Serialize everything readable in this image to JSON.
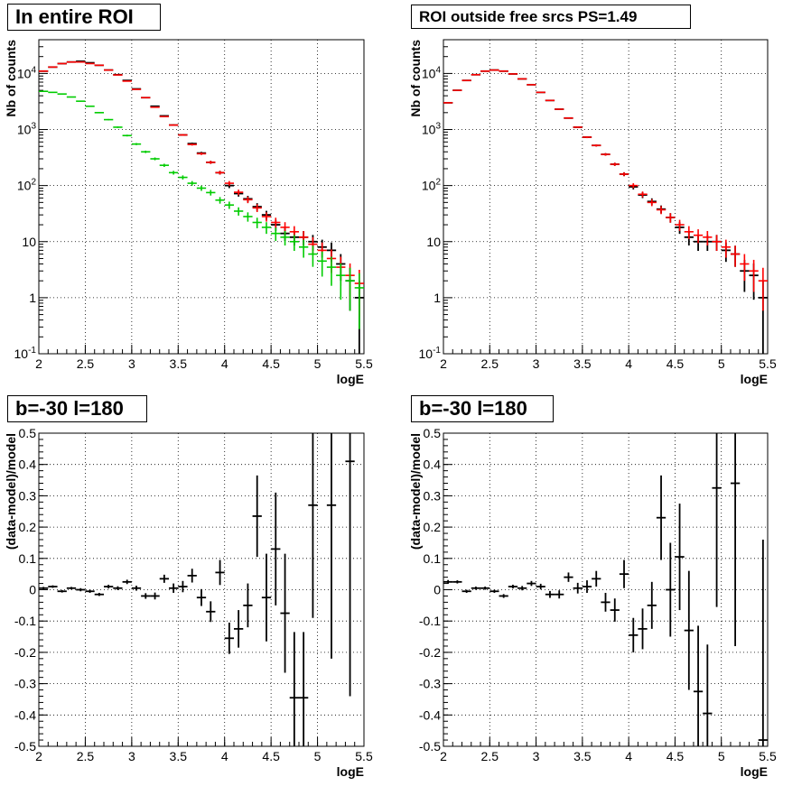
{
  "colors": {
    "data": "#000000",
    "model_total": "#ff0000",
    "model_blue": "#0000ff",
    "component": "#00cc00",
    "grid": "#000000"
  },
  "chart_data": [
    {
      "panel": "top-left",
      "type": "scatter",
      "title": "In entire ROI",
      "xlabel": "logE",
      "ylabel": "Nb of counts",
      "xlim": [
        2,
        5.5
      ],
      "ylim": [
        0.1,
        40000
      ],
      "yscale": "log",
      "xticks": [
        "2",
        "2.5",
        "3",
        "3.5",
        "4",
        "4.5",
        "5",
        "5.5"
      ],
      "yticks": [
        "10^-1",
        "1",
        "10",
        "10^2",
        "10^3",
        "10^4"
      ],
      "grid": true,
      "x": [
        2.05,
        2.15,
        2.25,
        2.35,
        2.45,
        2.55,
        2.65,
        2.75,
        2.85,
        2.95,
        3.05,
        3.15,
        3.25,
        3.35,
        3.45,
        3.55,
        3.65,
        3.75,
        3.85,
        3.95,
        4.05,
        4.15,
        4.25,
        4.35,
        4.45,
        4.55,
        4.65,
        4.75,
        4.85,
        4.95,
        5.05,
        5.15,
        5.25,
        5.35,
        5.45
      ],
      "series": [
        {
          "role": "data",
          "values": [
            11000,
            13000,
            15000,
            16000,
            16500,
            15500,
            14000,
            11500,
            9500,
            7500,
            5300,
            3700,
            2600,
            1750,
            1200,
            800,
            560,
            380,
            260,
            170,
            100,
            72,
            58,
            42,
            30,
            20,
            14,
            12,
            12,
            10,
            8,
            7,
            4,
            2,
            1
          ]
        },
        {
          "role": "model_total",
          "values": [
            11000,
            13000,
            15000,
            16000,
            16000,
            15000,
            14000,
            11500,
            9400,
            7300,
            5200,
            3700,
            2500,
            1700,
            1200,
            800,
            540,
            370,
            260,
            170,
            110,
            76,
            56,
            40,
            28,
            22,
            18,
            15,
            12,
            9,
            7,
            5,
            3.5,
            2.5,
            1.8
          ]
        },
        {
          "role": "component",
          "values": [
            4800,
            4600,
            4300,
            3800,
            3200,
            2600,
            2000,
            1500,
            1100,
            780,
            550,
            400,
            300,
            230,
            170,
            140,
            110,
            90,
            75,
            55,
            45,
            35,
            28,
            22,
            18,
            14,
            12,
            10,
            8,
            6,
            4.5,
            3.5,
            2.5,
            2,
            1.5
          ]
        }
      ]
    },
    {
      "panel": "top-right",
      "type": "scatter",
      "title": "ROI outside free srcs PS=1.49",
      "xlabel": "logE",
      "ylabel": "Nb of counts",
      "xlim": [
        2,
        5.5
      ],
      "ylim": [
        0.1,
        40000
      ],
      "yscale": "log",
      "xticks": [
        "2",
        "2.5",
        "3",
        "3.5",
        "4",
        "4.5",
        "5",
        "5.5"
      ],
      "yticks": [
        "10^-1",
        "1",
        "10",
        "10^2",
        "10^3",
        "10^4"
      ],
      "grid": true,
      "x": [
        2.05,
        2.15,
        2.25,
        2.35,
        2.45,
        2.55,
        2.65,
        2.75,
        2.85,
        2.95,
        3.05,
        3.15,
        3.25,
        3.35,
        3.45,
        3.55,
        3.65,
        3.75,
        3.85,
        3.95,
        4.05,
        4.15,
        4.25,
        4.35,
        4.45,
        4.55,
        4.65,
        4.75,
        4.85,
        4.95,
        5.05,
        5.15,
        5.25,
        5.35,
        5.45
      ],
      "series": [
        {
          "role": "data",
          "values": [
            3000,
            5000,
            7500,
            9500,
            11000,
            11500,
            11000,
            9800,
            8000,
            6300,
            4600,
            3300,
            2300,
            1600,
            1100,
            730,
            520,
            360,
            240,
            160,
            95,
            68,
            52,
            38,
            27,
            18,
            12,
            10,
            10,
            10,
            7,
            6,
            3,
            2.5,
            1
          ]
        },
        {
          "role": "model_total",
          "values": [
            3000,
            5000,
            7500,
            9500,
            11000,
            11500,
            11000,
            9800,
            8000,
            6300,
            4600,
            3300,
            2300,
            1600,
            1100,
            730,
            520,
            360,
            240,
            160,
            100,
            70,
            50,
            37,
            27,
            20,
            15,
            13,
            12,
            10,
            8,
            6,
            4,
            3,
            2
          ]
        }
      ]
    },
    {
      "panel": "bottom-left",
      "type": "scatter",
      "title": "b=-30 l=180",
      "xlabel": "logE",
      "ylabel": "(data-model)/model",
      "xlim": [
        2,
        5.5
      ],
      "ylim": [
        -0.5,
        0.5
      ],
      "yscale": "linear",
      "xticks": [
        "2",
        "2.5",
        "3",
        "3.5",
        "4",
        "4.5",
        "5",
        "5.5"
      ],
      "yticks": [
        "-0.5",
        "-0.4",
        "-0.3",
        "-0.2",
        "-0.1",
        "0",
        "0.1",
        "0.2",
        "0.3",
        "0.4",
        "0.5"
      ],
      "grid": true,
      "x": [
        2.05,
        2.15,
        2.25,
        2.35,
        2.45,
        2.55,
        2.65,
        2.75,
        2.85,
        2.95,
        3.05,
        3.15,
        3.25,
        3.35,
        3.45,
        3.55,
        3.65,
        3.75,
        3.85,
        3.95,
        4.05,
        4.15,
        4.25,
        4.35,
        4.45,
        4.55,
        4.65,
        4.75,
        4.85,
        4.95,
        5.15,
        5.35
      ],
      "series": [
        {
          "role": "data",
          "values": [
            0.005,
            0.01,
            -0.005,
            0.005,
            0.0,
            -0.005,
            -0.015,
            0.01,
            0.005,
            0.025,
            0.005,
            -0.02,
            -0.02,
            0.035,
            0.005,
            0.01,
            0.045,
            -0.025,
            -0.07,
            0.055,
            -0.155,
            -0.125,
            -0.05,
            0.235,
            -0.025,
            0.13,
            -0.075,
            -0.345,
            -0.345,
            0.27,
            0.27,
            0.41
          ],
          "errors": [
            0.004,
            0.004,
            0.004,
            0.004,
            0.005,
            0.005,
            0.005,
            0.006,
            0.006,
            0.007,
            0.008,
            0.009,
            0.011,
            0.013,
            0.015,
            0.018,
            0.022,
            0.027,
            0.033,
            0.04,
            0.05,
            0.06,
            0.07,
            0.13,
            0.14,
            0.18,
            0.19,
            0.21,
            0.21,
            0.36,
            0.49,
            0.75
          ]
        }
      ]
    },
    {
      "panel": "bottom-right",
      "type": "scatter",
      "title": "b=-30 l=180",
      "xlabel": "logE",
      "ylabel": "(data-model)/model",
      "xlim": [
        2,
        5.5
      ],
      "ylim": [
        -0.5,
        0.5
      ],
      "yscale": "linear",
      "xticks": [
        "2",
        "2.5",
        "3",
        "3.5",
        "4",
        "4.5",
        "5",
        "5.5"
      ],
      "yticks": [
        "-0.5",
        "-0.4",
        "-0.3",
        "-0.2",
        "-0.1",
        "0",
        "0.1",
        "0.2",
        "0.3",
        "0.4",
        "0.5"
      ],
      "grid": true,
      "x": [
        2.05,
        2.15,
        2.25,
        2.35,
        2.45,
        2.55,
        2.65,
        2.75,
        2.85,
        2.95,
        3.05,
        3.15,
        3.25,
        3.35,
        3.45,
        3.55,
        3.65,
        3.75,
        3.85,
        3.95,
        4.05,
        4.15,
        4.25,
        4.35,
        4.45,
        4.55,
        4.65,
        4.75,
        4.85,
        4.95,
        5.15,
        5.45
      ],
      "series": [
        {
          "role": "data",
          "values": [
            0.025,
            0.025,
            -0.005,
            0.005,
            0.005,
            -0.005,
            -0.02,
            0.01,
            0.005,
            0.02,
            0.01,
            -0.015,
            -0.015,
            0.04,
            0.005,
            0.01,
            0.035,
            -0.04,
            -0.065,
            0.05,
            -0.145,
            -0.125,
            -0.05,
            0.23,
            0.0,
            0.105,
            -0.13,
            -0.325,
            -0.395,
            0.325,
            0.34,
            -0.48
          ],
          "errors": [
            0.006,
            0.005,
            0.005,
            0.005,
            0.005,
            0.005,
            0.006,
            0.006,
            0.007,
            0.008,
            0.009,
            0.011,
            0.013,
            0.015,
            0.017,
            0.02,
            0.025,
            0.03,
            0.037,
            0.045,
            0.055,
            0.065,
            0.075,
            0.135,
            0.15,
            0.17,
            0.19,
            0.21,
            0.22,
            0.38,
            0.52,
            0.64
          ]
        }
      ]
    }
  ]
}
